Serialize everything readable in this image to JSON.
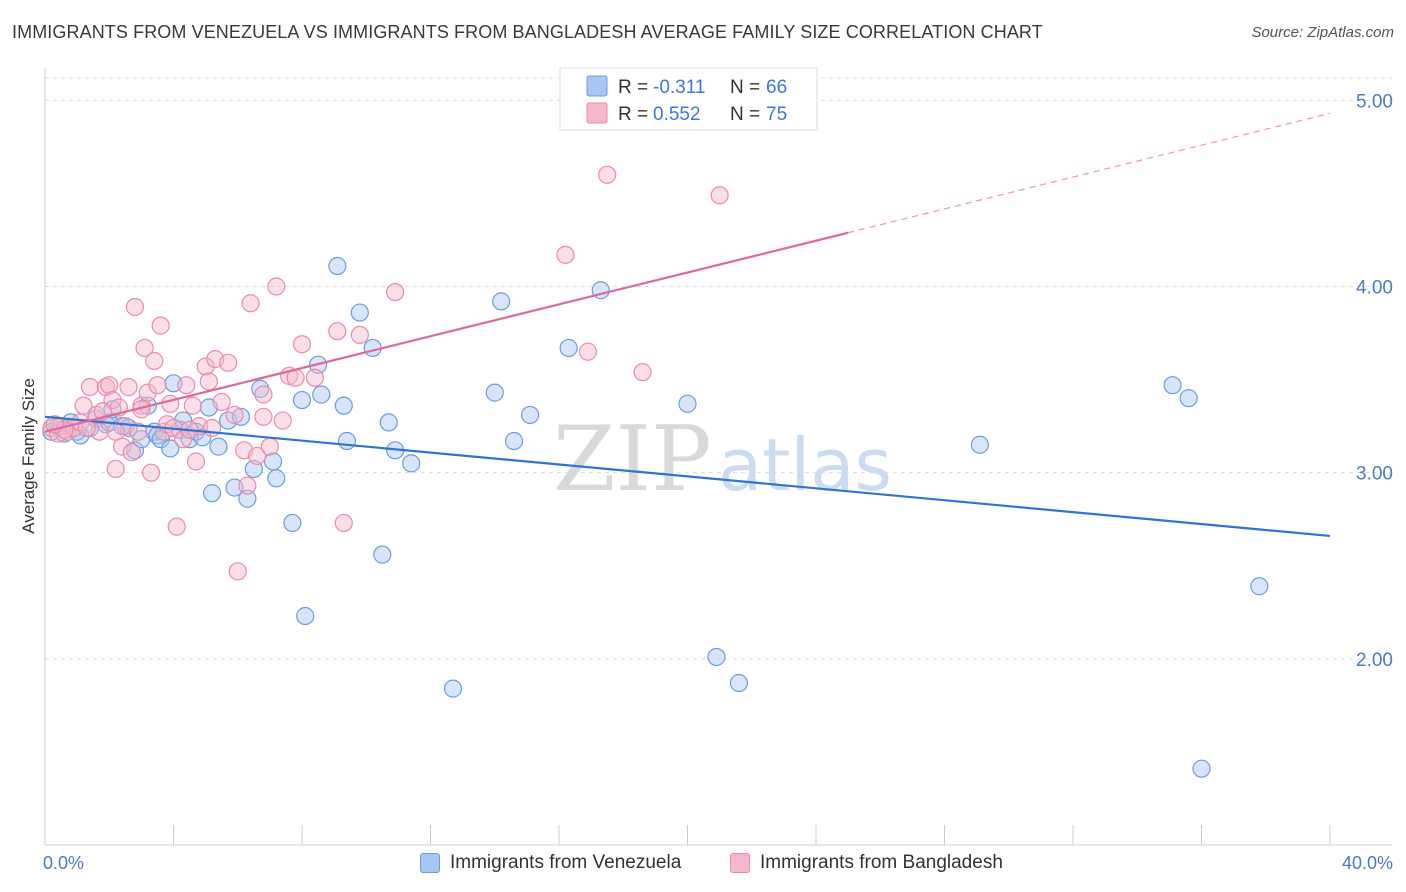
{
  "title": "IMMIGRANTS FROM VENEZUELA VS IMMIGRANTS FROM BANGLADESH AVERAGE FAMILY SIZE CORRELATION CHART",
  "source": "Source: ZipAtlas.com",
  "watermark": {
    "zip": "ZIP",
    "atlas": "atlas"
  },
  "colors": {
    "blue_fill": "#a8c6f0",
    "blue_stroke": "#6b9ee0",
    "blue_line": "#2f74d0",
    "pink_fill": "#f5b8cb",
    "pink_stroke": "#ee8aaa",
    "pink_line": "#e06a96",
    "grid": "#dcdcdc",
    "tick_text": "#4a7cc9"
  },
  "legend": {
    "rows": [
      {
        "r_label": "R =",
        "r_value": "-0.311",
        "n_label": "N =",
        "n_value": "66"
      },
      {
        "r_label": "R =",
        "r_value": "0.552",
        "n_label": "N =",
        "n_value": "75"
      }
    ]
  },
  "chart_data": {
    "type": "scatter",
    "ylabel": "Average Family Size",
    "xlim": [
      0,
      40
    ],
    "ylim": [
      1.0,
      5.0
    ],
    "x_tick_labels": {
      "left": "0.0%",
      "right": "40.0%"
    },
    "y_ticks": [
      {
        "value": 2.0,
        "label": "2.00"
      },
      {
        "value": 3.0,
        "label": "3.00"
      },
      {
        "value": 4.0,
        "label": "4.00"
      },
      {
        "value": 5.0,
        "label": "5.00"
      }
    ],
    "grid": true,
    "series": [
      {
        "name": "Immigrants from Venezuela",
        "color": "blue",
        "trend": {
          "x0": 0,
          "y0": 3.3,
          "x1": 40,
          "y1": 2.66,
          "dashed_from": null
        },
        "points": [
          [
            0.2,
            3.22
          ],
          [
            0.4,
            3.25
          ],
          [
            0.6,
            3.21
          ],
          [
            0.8,
            3.27
          ],
          [
            1.0,
            3.22
          ],
          [
            1.1,
            3.2
          ],
          [
            1.4,
            3.24
          ],
          [
            1.6,
            3.29
          ],
          [
            1.9,
            3.26
          ],
          [
            2.0,
            3.27
          ],
          [
            2.1,
            3.34
          ],
          [
            2.4,
            3.25
          ],
          [
            2.6,
            3.24
          ],
          [
            2.8,
            3.12
          ],
          [
            3.0,
            3.18
          ],
          [
            3.2,
            3.36
          ],
          [
            3.4,
            3.22
          ],
          [
            3.5,
            3.2
          ],
          [
            3.6,
            3.18
          ],
          [
            3.9,
            3.13
          ],
          [
            4.0,
            3.48
          ],
          [
            4.2,
            3.23
          ],
          [
            4.3,
            3.28
          ],
          [
            4.5,
            3.18
          ],
          [
            4.7,
            3.22
          ],
          [
            4.9,
            3.19
          ],
          [
            5.1,
            3.35
          ],
          [
            5.2,
            2.89
          ],
          [
            5.4,
            3.14
          ],
          [
            5.7,
            3.28
          ],
          [
            5.9,
            2.92
          ],
          [
            6.1,
            3.3
          ],
          [
            6.3,
            2.86
          ],
          [
            6.5,
            3.02
          ],
          [
            6.7,
            3.45
          ],
          [
            7.1,
            3.06
          ],
          [
            7.2,
            2.97
          ],
          [
            7.7,
            2.73
          ],
          [
            8.0,
            3.39
          ],
          [
            8.1,
            2.23
          ],
          [
            8.5,
            3.58
          ],
          [
            8.6,
            3.42
          ],
          [
            9.1,
            4.11
          ],
          [
            9.3,
            3.36
          ],
          [
            9.4,
            3.17
          ],
          [
            9.8,
            3.86
          ],
          [
            10.2,
            3.67
          ],
          [
            10.5,
            2.56
          ],
          [
            10.7,
            3.27
          ],
          [
            10.9,
            3.12
          ],
          [
            11.4,
            3.05
          ],
          [
            12.7,
            1.84
          ],
          [
            14.0,
            3.43
          ],
          [
            14.2,
            3.92
          ],
          [
            14.6,
            3.17
          ],
          [
            15.1,
            3.31
          ],
          [
            16.3,
            3.67
          ],
          [
            17.3,
            3.98
          ],
          [
            20.0,
            3.37
          ],
          [
            20.9,
            2.01
          ],
          [
            21.6,
            1.87
          ],
          [
            29.1,
            3.15
          ],
          [
            35.1,
            3.47
          ],
          [
            35.6,
            3.4
          ],
          [
            36.0,
            1.41
          ],
          [
            37.8,
            2.39
          ]
        ]
      },
      {
        "name": "Immigrants from Bangladesh",
        "color": "pink",
        "trend": {
          "x0": 0,
          "y0": 3.22,
          "x1": 40,
          "y1": 4.93,
          "dashed_from": 25.0
        },
        "points": [
          [
            0.2,
            3.24
          ],
          [
            0.4,
            3.21
          ],
          [
            0.5,
            3.25
          ],
          [
            0.7,
            3.22
          ],
          [
            0.9,
            3.24
          ],
          [
            1.1,
            3.27
          ],
          [
            1.2,
            3.36
          ],
          [
            1.4,
            3.46
          ],
          [
            1.6,
            3.31
          ],
          [
            1.7,
            3.22
          ],
          [
            1.9,
            3.46
          ],
          [
            2.0,
            3.47
          ],
          [
            2.1,
            3.39
          ],
          [
            2.2,
            3.02
          ],
          [
            2.3,
            3.35
          ],
          [
            2.4,
            3.14
          ],
          [
            2.5,
            3.25
          ],
          [
            2.6,
            3.46
          ],
          [
            2.7,
            3.11
          ],
          [
            2.8,
            3.89
          ],
          [
            2.9,
            3.22
          ],
          [
            3.0,
            3.36
          ],
          [
            3.1,
            3.67
          ],
          [
            3.2,
            3.43
          ],
          [
            3.3,
            3.0
          ],
          [
            3.4,
            3.6
          ],
          [
            3.5,
            3.47
          ],
          [
            3.6,
            3.79
          ],
          [
            3.7,
            3.22
          ],
          [
            3.8,
            3.26
          ],
          [
            3.9,
            3.37
          ],
          [
            4.0,
            3.24
          ],
          [
            4.1,
            2.71
          ],
          [
            4.3,
            3.18
          ],
          [
            4.4,
            3.47
          ],
          [
            4.6,
            3.36
          ],
          [
            4.7,
            3.06
          ],
          [
            4.8,
            3.25
          ],
          [
            5.0,
            3.57
          ],
          [
            5.1,
            3.49
          ],
          [
            5.3,
            3.61
          ],
          [
            5.5,
            3.38
          ],
          [
            5.7,
            3.59
          ],
          [
            5.9,
            3.31
          ],
          [
            6.0,
            2.47
          ],
          [
            6.2,
            3.12
          ],
          [
            6.3,
            2.93
          ],
          [
            6.4,
            3.91
          ],
          [
            6.6,
            3.09
          ],
          [
            6.8,
            3.42
          ],
          [
            7.0,
            3.14
          ],
          [
            7.2,
            4.0
          ],
          [
            7.4,
            3.28
          ],
          [
            7.6,
            3.52
          ],
          [
            8.0,
            3.69
          ],
          [
            8.4,
            3.51
          ],
          [
            9.1,
            3.76
          ],
          [
            9.3,
            2.73
          ],
          [
            9.8,
            3.74
          ],
          [
            10.9,
            3.97
          ],
          [
            16.2,
            4.17
          ],
          [
            16.9,
            3.65
          ],
          [
            17.5,
            4.6
          ],
          [
            18.6,
            3.54
          ],
          [
            21.0,
            4.49
          ],
          [
            0.6,
            3.23
          ],
          [
            1.3,
            3.24
          ],
          [
            2.2,
            3.22
          ],
          [
            3.0,
            3.34
          ],
          [
            4.5,
            3.23
          ],
          [
            5.2,
            3.24
          ],
          [
            6.8,
            3.3
          ],
          [
            7.8,
            3.51
          ],
          [
            0.3,
            3.26
          ],
          [
            1.8,
            3.33
          ]
        ]
      }
    ]
  }
}
